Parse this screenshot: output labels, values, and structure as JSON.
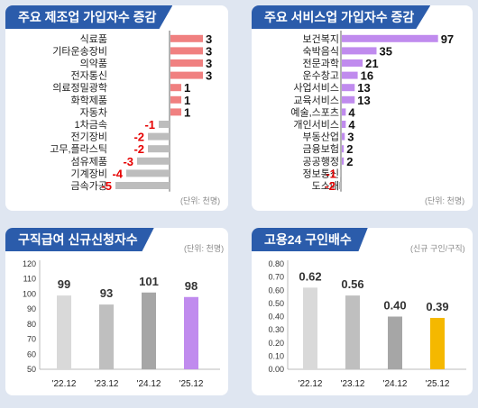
{
  "colors": {
    "background": "#dfe6f1",
    "title_bg": "#2b5cab",
    "positive_mfg": "#f08080",
    "negative": "#bdbdbd",
    "negative_label": "#e60000",
    "positive_svc": "#c08bee",
    "bar_2212": "#d9d9d9",
    "bar_2312": "#bfbfbf",
    "bar_2412": "#a6a6a6",
    "bar_2512_claims": "#c08bee",
    "bar_2512_jobs": "#f5b800"
  },
  "chart_data": [
    {
      "type": "bar",
      "orientation": "horizontal",
      "title": "주요 제조업 가입자수 증감",
      "unit": "(단위: 천명)",
      "categories": [
        "식료품",
        "기타운송장비",
        "의약품",
        "전자통신",
        "의료정밀광학",
        "화학제품",
        "자동차",
        "1차금속",
        "전기장비",
        "고무,플라스틱",
        "섬유제품",
        "기계장비",
        "금속가공"
      ],
      "values": [
        3,
        3,
        3,
        3,
        1,
        1,
        1,
        -1,
        -2,
        -2,
        -3,
        -4,
        -5
      ]
    },
    {
      "type": "bar",
      "orientation": "horizontal",
      "title": "주요 서비스업 가입자수 증감",
      "unit": "(단위: 천명)",
      "categories": [
        "보건복지",
        "숙박음식",
        "전문과학",
        "운수창고",
        "사업서비스",
        "교육서비스",
        "예술,스포츠",
        "개인서비스",
        "부동산업",
        "금융보험",
        "공공행정",
        "정보통신",
        "도소매"
      ],
      "values": [
        97,
        35,
        21,
        16,
        13,
        13,
        4,
        4,
        3,
        2,
        2,
        -1,
        -2
      ]
    },
    {
      "type": "bar",
      "title": "구직급여 신규신청자수",
      "unit": "(단위: 천명)",
      "categories": [
        "'22.12",
        "'23.12",
        "'24.12",
        "'25.12"
      ],
      "values": [
        99,
        93,
        101,
        98
      ],
      "ylim": [
        50,
        120
      ],
      "yticks": [
        50,
        60,
        70,
        80,
        90,
        100,
        110,
        120
      ]
    },
    {
      "type": "bar",
      "title": "고용24 구인배수",
      "unit": "(신규 구인/구직)",
      "categories": [
        "'22.12",
        "'23.12",
        "'24.12",
        "'25.12"
      ],
      "values": [
        0.62,
        0.56,
        0.4,
        0.39
      ],
      "ylim": [
        0,
        0.8
      ],
      "yticks": [
        "0.00",
        "0.10",
        "0.20",
        "0.30",
        "0.40",
        "0.50",
        "0.60",
        "0.70",
        "0.80"
      ]
    }
  ]
}
